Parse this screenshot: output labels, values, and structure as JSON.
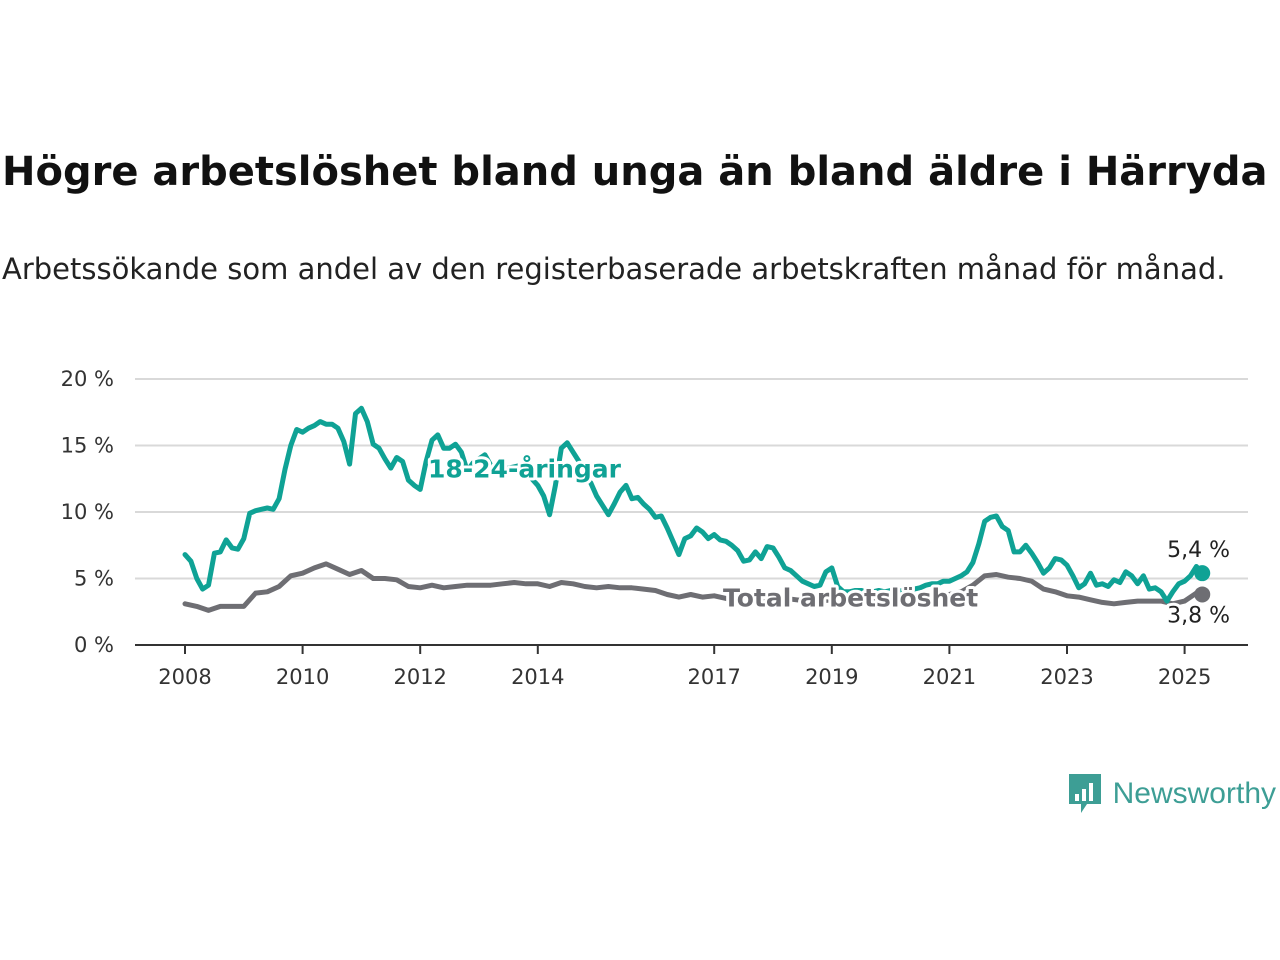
{
  "title": "Högre arbetslöshet bland unga än bland äldre i Härryda",
  "subtitle": "Arbetssökande som andel av den registerbaserade arbetskraften månad för månad.",
  "brand": {
    "name": "Newsworthy",
    "color": "#3d9e95"
  },
  "chart_data": {
    "type": "line",
    "xlabel": "",
    "ylabel": "",
    "xlim": [
      2008,
      2025.3
    ],
    "ylim": [
      0,
      20
    ],
    "x_ticks": [
      {
        "value": 2008,
        "label": "2008"
      },
      {
        "value": 2010,
        "label": "2010"
      },
      {
        "value": 2012,
        "label": "2012"
      },
      {
        "value": 2014,
        "label": "2014"
      },
      {
        "value": 2017,
        "label": "2017"
      },
      {
        "value": 2019,
        "label": "2019"
      },
      {
        "value": 2021,
        "label": "2021"
      },
      {
        "value": 2023,
        "label": "2023"
      },
      {
        "value": 2025,
        "label": "2025"
      }
    ],
    "y_ticks": [
      {
        "value": 0,
        "label": "0 %"
      },
      {
        "value": 5,
        "label": "5 %"
      },
      {
        "value": 10,
        "label": "10 %"
      },
      {
        "value": 15,
        "label": "15 %"
      },
      {
        "value": 20,
        "label": "20 %"
      }
    ],
    "grid": true,
    "series": [
      {
        "name": "18-24-åringar",
        "color": "#0fa295",
        "end_label": "5,4 %",
        "points": [
          [
            2008.0,
            6.8
          ],
          [
            2008.1,
            6.3
          ],
          [
            2008.2,
            5.0
          ],
          [
            2008.3,
            4.2
          ],
          [
            2008.4,
            4.5
          ],
          [
            2008.5,
            6.9
          ],
          [
            2008.6,
            7.0
          ],
          [
            2008.7,
            7.9
          ],
          [
            2008.8,
            7.3
          ],
          [
            2008.9,
            7.2
          ],
          [
            2009.0,
            8.0
          ],
          [
            2009.1,
            9.9
          ],
          [
            2009.2,
            10.1
          ],
          [
            2009.3,
            10.2
          ],
          [
            2009.4,
            10.3
          ],
          [
            2009.5,
            10.2
          ],
          [
            2009.6,
            11.0
          ],
          [
            2009.7,
            13.2
          ],
          [
            2009.8,
            15.0
          ],
          [
            2009.9,
            16.2
          ],
          [
            2010.0,
            16.0
          ],
          [
            2010.1,
            16.3
          ],
          [
            2010.2,
            16.5
          ],
          [
            2010.3,
            16.8
          ],
          [
            2010.4,
            16.6
          ],
          [
            2010.5,
            16.6
          ],
          [
            2010.6,
            16.3
          ],
          [
            2010.7,
            15.3
          ],
          [
            2010.8,
            13.6
          ],
          [
            2010.9,
            17.4
          ],
          [
            2011.0,
            17.8
          ],
          [
            2011.1,
            16.8
          ],
          [
            2011.2,
            15.1
          ],
          [
            2011.3,
            14.8
          ],
          [
            2011.4,
            14.0
          ],
          [
            2011.5,
            13.3
          ],
          [
            2011.6,
            14.1
          ],
          [
            2011.7,
            13.8
          ],
          [
            2011.8,
            12.4
          ],
          [
            2011.9,
            12.0
          ],
          [
            2012.0,
            11.7
          ],
          [
            2012.1,
            13.8
          ],
          [
            2012.2,
            15.4
          ],
          [
            2012.3,
            15.8
          ],
          [
            2012.4,
            14.8
          ],
          [
            2012.5,
            14.8
          ],
          [
            2012.6,
            15.1
          ],
          [
            2012.7,
            14.5
          ],
          [
            2012.8,
            13.1
          ],
          [
            2012.9,
            13.7
          ],
          [
            2013.0,
            14.0
          ],
          [
            2013.1,
            14.3
          ],
          [
            2013.2,
            13.5
          ],
          [
            2013.3,
            12.9
          ],
          [
            2013.4,
            13.1
          ],
          [
            2013.5,
            13.3
          ],
          [
            2013.6,
            13.4
          ],
          [
            2013.7,
            13.5
          ],
          [
            2013.8,
            13.3
          ],
          [
            2013.9,
            12.5
          ],
          [
            2014.0,
            12.0
          ],
          [
            2014.1,
            11.2
          ],
          [
            2014.2,
            9.8
          ],
          [
            2014.3,
            12.0
          ],
          [
            2014.4,
            14.8
          ],
          [
            2014.5,
            15.2
          ],
          [
            2014.6,
            14.5
          ],
          [
            2014.7,
            13.8
          ],
          [
            2014.8,
            12.6
          ],
          [
            2014.9,
            12.2
          ],
          [
            2015.0,
            11.2
          ],
          [
            2015.1,
            10.5
          ],
          [
            2015.2,
            9.8
          ],
          [
            2015.3,
            10.6
          ],
          [
            2015.4,
            11.5
          ],
          [
            2015.5,
            12.0
          ],
          [
            2015.6,
            11.0
          ],
          [
            2015.7,
            11.1
          ],
          [
            2015.8,
            10.6
          ],
          [
            2015.9,
            10.2
          ],
          [
            2016.0,
            9.6
          ],
          [
            2016.1,
            9.7
          ],
          [
            2016.2,
            8.8
          ],
          [
            2016.3,
            7.8
          ],
          [
            2016.4,
            6.8
          ],
          [
            2016.5,
            8.0
          ],
          [
            2016.6,
            8.2
          ],
          [
            2016.7,
            8.8
          ],
          [
            2016.8,
            8.5
          ],
          [
            2016.9,
            8.0
          ],
          [
            2017.0,
            8.3
          ],
          [
            2017.1,
            7.9
          ],
          [
            2017.2,
            7.8
          ],
          [
            2017.3,
            7.5
          ],
          [
            2017.4,
            7.1
          ],
          [
            2017.5,
            6.3
          ],
          [
            2017.6,
            6.4
          ],
          [
            2017.7,
            7.0
          ],
          [
            2017.8,
            6.5
          ],
          [
            2017.9,
            7.4
          ],
          [
            2018.0,
            7.3
          ],
          [
            2018.1,
            6.6
          ],
          [
            2018.2,
            5.8
          ],
          [
            2018.3,
            5.6
          ],
          [
            2018.4,
            5.2
          ],
          [
            2018.5,
            4.8
          ],
          [
            2018.6,
            4.6
          ],
          [
            2018.7,
            4.4
          ],
          [
            2018.8,
            4.5
          ],
          [
            2018.9,
            5.5
          ],
          [
            2019.0,
            5.8
          ],
          [
            2019.1,
            4.4
          ],
          [
            2019.2,
            4.0
          ],
          [
            2019.3,
            4.0
          ],
          [
            2019.4,
            4.1
          ],
          [
            2019.5,
            4.1
          ],
          [
            2019.6,
            4.0
          ],
          [
            2019.7,
            4.0
          ],
          [
            2019.8,
            4.1
          ],
          [
            2019.9,
            4.0
          ],
          [
            2020.0,
            4.1
          ],
          [
            2020.1,
            4.0
          ],
          [
            2020.2,
            4.1
          ],
          [
            2020.3,
            4.0
          ],
          [
            2020.4,
            4.2
          ],
          [
            2020.5,
            4.3
          ],
          [
            2020.6,
            4.5
          ],
          [
            2020.7,
            4.6
          ],
          [
            2020.8,
            4.6
          ],
          [
            2020.9,
            4.8
          ],
          [
            2021.0,
            4.8
          ],
          [
            2021.1,
            5.0
          ],
          [
            2021.2,
            5.2
          ],
          [
            2021.3,
            5.5
          ],
          [
            2021.4,
            6.2
          ],
          [
            2021.5,
            7.6
          ],
          [
            2021.6,
            9.3
          ],
          [
            2021.7,
            9.6
          ],
          [
            2021.8,
            9.7
          ],
          [
            2021.9,
            8.9
          ],
          [
            2022.0,
            8.6
          ],
          [
            2022.1,
            7.0
          ],
          [
            2022.2,
            7.0
          ],
          [
            2022.3,
            7.5
          ],
          [
            2022.4,
            6.9
          ],
          [
            2022.5,
            6.2
          ],
          [
            2022.6,
            5.4
          ],
          [
            2022.7,
            5.8
          ],
          [
            2022.8,
            6.5
          ],
          [
            2022.9,
            6.4
          ],
          [
            2023.0,
            6.0
          ],
          [
            2023.1,
            5.2
          ],
          [
            2023.2,
            4.3
          ],
          [
            2023.3,
            4.6
          ],
          [
            2023.4,
            5.4
          ],
          [
            2023.5,
            4.5
          ],
          [
            2023.6,
            4.6
          ],
          [
            2023.7,
            4.4
          ],
          [
            2023.8,
            4.9
          ],
          [
            2023.9,
            4.7
          ],
          [
            2024.0,
            5.5
          ],
          [
            2024.1,
            5.2
          ],
          [
            2024.2,
            4.6
          ],
          [
            2024.3,
            5.2
          ],
          [
            2024.4,
            4.2
          ],
          [
            2024.5,
            4.3
          ],
          [
            2024.6,
            4.0
          ],
          [
            2024.7,
            3.3
          ],
          [
            2024.8,
            4.0
          ],
          [
            2024.9,
            4.6
          ],
          [
            2025.0,
            4.8
          ],
          [
            2025.1,
            5.2
          ],
          [
            2025.2,
            5.9
          ],
          [
            2025.3,
            5.4
          ]
        ]
      },
      {
        "name": "Total arbetslöshet",
        "color": "#6e6e73",
        "end_label": "3,8 %",
        "points": [
          [
            2008.0,
            3.1
          ],
          [
            2008.2,
            2.9
          ],
          [
            2008.4,
            2.6
          ],
          [
            2008.6,
            2.9
          ],
          [
            2008.8,
            2.9
          ],
          [
            2009.0,
            2.9
          ],
          [
            2009.2,
            3.9
          ],
          [
            2009.4,
            4.0
          ],
          [
            2009.6,
            4.4
          ],
          [
            2009.8,
            5.2
          ],
          [
            2010.0,
            5.4
          ],
          [
            2010.2,
            5.8
          ],
          [
            2010.4,
            6.1
          ],
          [
            2010.6,
            5.7
          ],
          [
            2010.8,
            5.3
          ],
          [
            2011.0,
            5.6
          ],
          [
            2011.2,
            5.0
          ],
          [
            2011.4,
            5.0
          ],
          [
            2011.6,
            4.9
          ],
          [
            2011.8,
            4.4
          ],
          [
            2012.0,
            4.3
          ],
          [
            2012.2,
            4.5
          ],
          [
            2012.4,
            4.3
          ],
          [
            2012.6,
            4.4
          ],
          [
            2012.8,
            4.5
          ],
          [
            2013.0,
            4.5
          ],
          [
            2013.2,
            4.5
          ],
          [
            2013.4,
            4.6
          ],
          [
            2013.6,
            4.7
          ],
          [
            2013.8,
            4.6
          ],
          [
            2014.0,
            4.6
          ],
          [
            2014.2,
            4.4
          ],
          [
            2014.4,
            4.7
          ],
          [
            2014.6,
            4.6
          ],
          [
            2014.8,
            4.4
          ],
          [
            2015.0,
            4.3
          ],
          [
            2015.2,
            4.4
          ],
          [
            2015.4,
            4.3
          ],
          [
            2015.6,
            4.3
          ],
          [
            2015.8,
            4.2
          ],
          [
            2016.0,
            4.1
          ],
          [
            2016.2,
            3.8
          ],
          [
            2016.4,
            3.6
          ],
          [
            2016.6,
            3.8
          ],
          [
            2016.8,
            3.6
          ],
          [
            2017.0,
            3.7
          ],
          [
            2017.2,
            3.5
          ],
          [
            2017.4,
            3.3
          ],
          [
            2017.6,
            3.2
          ],
          [
            2017.8,
            3.4
          ],
          [
            2018.0,
            3.5
          ],
          [
            2018.2,
            3.5
          ],
          [
            2018.4,
            3.4
          ],
          [
            2018.6,
            3.3
          ],
          [
            2018.8,
            3.3
          ],
          [
            2019.0,
            3.4
          ],
          [
            2019.2,
            3.3
          ],
          [
            2019.4,
            3.3
          ],
          [
            2019.6,
            3.3
          ],
          [
            2019.8,
            3.4
          ],
          [
            2020.0,
            3.3
          ],
          [
            2020.2,
            3.3
          ],
          [
            2020.4,
            3.4
          ],
          [
            2020.6,
            3.5
          ],
          [
            2020.8,
            3.6
          ],
          [
            2021.0,
            3.8
          ],
          [
            2021.2,
            4.0
          ],
          [
            2021.4,
            4.5
          ],
          [
            2021.6,
            5.2
          ],
          [
            2021.8,
            5.3
          ],
          [
            2022.0,
            5.1
          ],
          [
            2022.2,
            5.0
          ],
          [
            2022.4,
            4.8
          ],
          [
            2022.6,
            4.2
          ],
          [
            2022.8,
            4.0
          ],
          [
            2023.0,
            3.7
          ],
          [
            2023.2,
            3.6
          ],
          [
            2023.4,
            3.4
          ],
          [
            2023.6,
            3.2
          ],
          [
            2023.8,
            3.1
          ],
          [
            2024.0,
            3.2
          ],
          [
            2024.2,
            3.3
          ],
          [
            2024.4,
            3.3
          ],
          [
            2024.6,
            3.3
          ],
          [
            2024.8,
            3.1
          ],
          [
            2025.0,
            3.3
          ],
          [
            2025.1,
            3.6
          ],
          [
            2025.2,
            3.9
          ],
          [
            2025.3,
            3.8
          ]
        ]
      }
    ]
  }
}
